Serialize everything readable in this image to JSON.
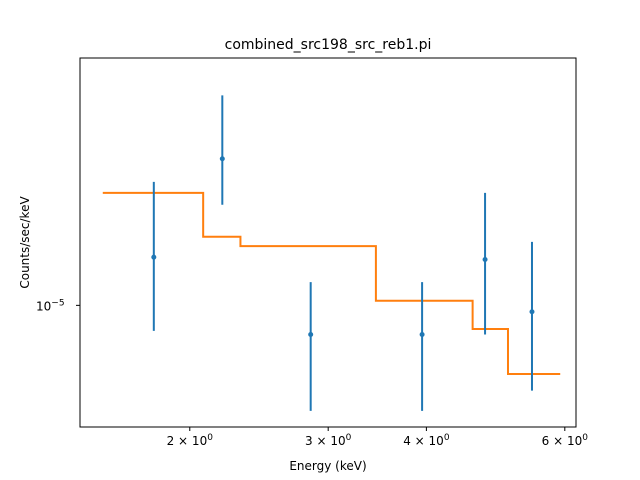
{
  "chart_data": {
    "type": "scatter",
    "title": "combined_src198_src_reb1.pi",
    "xlabel": "Energy (keV)",
    "ylabel": "Counts/sec/keV",
    "x_scale": "log",
    "y_scale": "log",
    "xlim": [
      1.45,
      6.2
    ],
    "ylim": [
      4.6e-06,
      4.85e-05
    ],
    "x_ticks": [
      {
        "value": 2,
        "base": "2 × 10",
        "exp": "0"
      },
      {
        "value": 3,
        "base": "3 × 10",
        "exp": "0"
      },
      {
        "value": 4,
        "base": "4 × 10",
        "exp": "0"
      },
      {
        "value": 6,
        "base": "6 × 10",
        "exp": "0"
      }
    ],
    "y_ticks": [
      {
        "value": 1e-05,
        "base": "10",
        "exp": "−5"
      }
    ],
    "data_color": "#1f77b4",
    "model_color": "#ff7f0e",
    "series": [
      {
        "kind": "data",
        "x": [
          1.8,
          2.2,
          2.85,
          3.95,
          4.75,
          5.45
        ],
        "y": [
          1.36e-05,
          2.55e-05,
          8.3e-06,
          8.3e-06,
          1.34e-05,
          9.6e-06
        ],
        "yerr_low": [
          8.5e-06,
          1.9e-05,
          5.1e-06,
          5.1e-06,
          8.3e-06,
          5.8e-06
        ],
        "yerr_high": [
          2.2e-05,
          3.82e-05,
          1.16e-05,
          1.16e-05,
          2.05e-05,
          1.5e-05
        ]
      },
      {
        "kind": "model",
        "step_edges": [
          1.55,
          2.08,
          2.32,
          3.45,
          4.58,
          5.08,
          5.92
        ],
        "step_values": [
          2.05e-05,
          1.55e-05,
          1.46e-05,
          1.03e-05,
          8.6e-06,
          6.45e-06
        ]
      }
    ]
  }
}
